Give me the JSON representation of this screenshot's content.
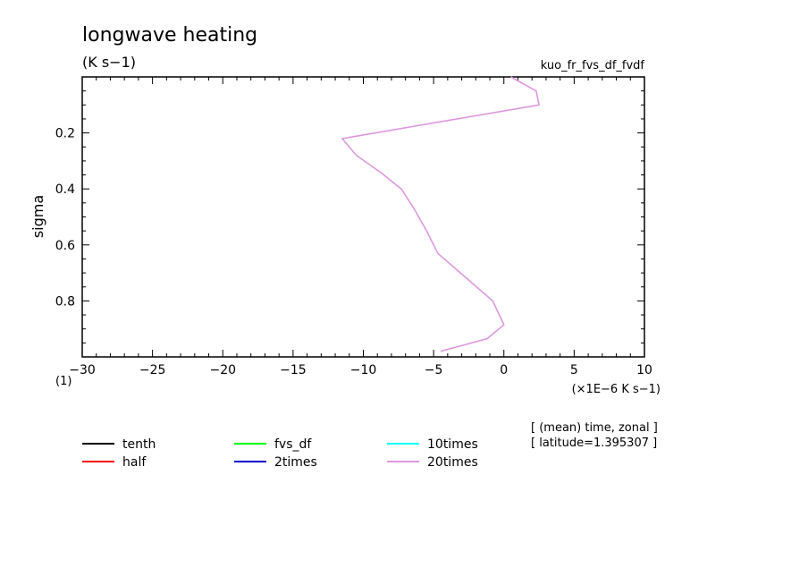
{
  "chart_data": {
    "type": "line",
    "title": "longwave heating",
    "units_label": "(K s−1)",
    "experiment_label": "kuo_fr_fvs_df_fvdf",
    "ylabel": "sigma",
    "xlabel": "(×1E−6 K s−1)",
    "y_factor_label": "(1)",
    "xlim": [
      -30,
      10
    ],
    "ylim": [
      0.0,
      1.0
    ],
    "y_inverted": true,
    "x_ticks": [
      -30,
      -25,
      -20,
      -15,
      -10,
      -5,
      0,
      5,
      10
    ],
    "x_tick_labels": [
      "−30",
      "−25",
      "−20",
      "−15",
      "−10",
      "−5",
      "0",
      "5",
      "10"
    ],
    "y_ticks": [
      0.2,
      0.4,
      0.6,
      0.8
    ],
    "y_tick_labels": [
      "0.2",
      "0.4",
      "0.6",
      "0.8"
    ],
    "grid": false,
    "notes": [
      "[ (mean) time, zonal ]",
      "[ latitude=1.395307 ]"
    ],
    "legend_position": "bottom",
    "series": [
      {
        "name": "tenth",
        "color": "#000000",
        "x": [],
        "y": []
      },
      {
        "name": "half",
        "color": "#ff0000",
        "x": [],
        "y": []
      },
      {
        "name": "fvs_df",
        "color": "#00ff00",
        "x": [],
        "y": []
      },
      {
        "name": "2times",
        "color": "#0000cd",
        "x": [],
        "y": []
      },
      {
        "name": "10times",
        "color": "#00ffff",
        "x": [],
        "y": []
      },
      {
        "name": "20times",
        "color": "#dd99dd",
        "x": [
          0.5,
          2.3,
          2.5,
          -11.5,
          -10.5,
          -8.8,
          -7.3,
          -6.4,
          -5.5,
          -4.7,
          -0.8,
          0.0,
          -1.2,
          -4.5
        ],
        "y": [
          0.0,
          0.05,
          0.1,
          0.22,
          0.28,
          0.34,
          0.4,
          0.47,
          0.55,
          0.63,
          0.8,
          0.885,
          0.935,
          0.98
        ]
      }
    ]
  }
}
